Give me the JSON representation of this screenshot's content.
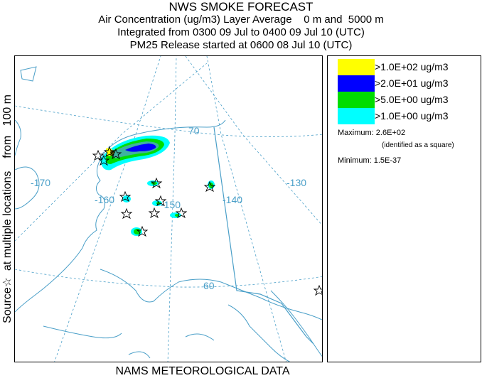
{
  "header": {
    "title": "NWS SMOKE FORECAST",
    "line1": "Air Concentration (ug/m3) Layer Average    0 m and  5000 m",
    "line2": "Integrated from 0300 09 Jul to 0400 09 Jul 10 (UTC)",
    "line3": "PM25 Release started at 0600 08 Jul 10 (UTC)"
  },
  "side_label": "Source☆  at multiple locations    from   100 m",
  "footer": "NAMS METEOROLOGICAL DATA",
  "map": {
    "longitude_labels": [
      "-170",
      "-160",
      "-150",
      "-140",
      "-130"
    ],
    "latitude_labels": [
      "70",
      "60"
    ],
    "colors": {
      "coast": "#4a9fc8",
      "grid": "#4a9fc8",
      "border": "#4a9fc8"
    }
  },
  "legend": {
    "items": [
      {
        "color": "#ffff00",
        "label": ">1.0E+02 ug/m3"
      },
      {
        "color": "#0000ff",
        "label": ">2.0E+01 ug/m3"
      },
      {
        "color": "#00dd00",
        "label": ">5.0E+00 ug/m3"
      },
      {
        "color": "#00ffff",
        "label": ">1.0E+00 ug/m3"
      }
    ],
    "maximum_label": "Maximum: 2.6E+02",
    "maximum_note": "(identified as a square)",
    "minimum_label": "Minimum: 1.5E-37"
  }
}
